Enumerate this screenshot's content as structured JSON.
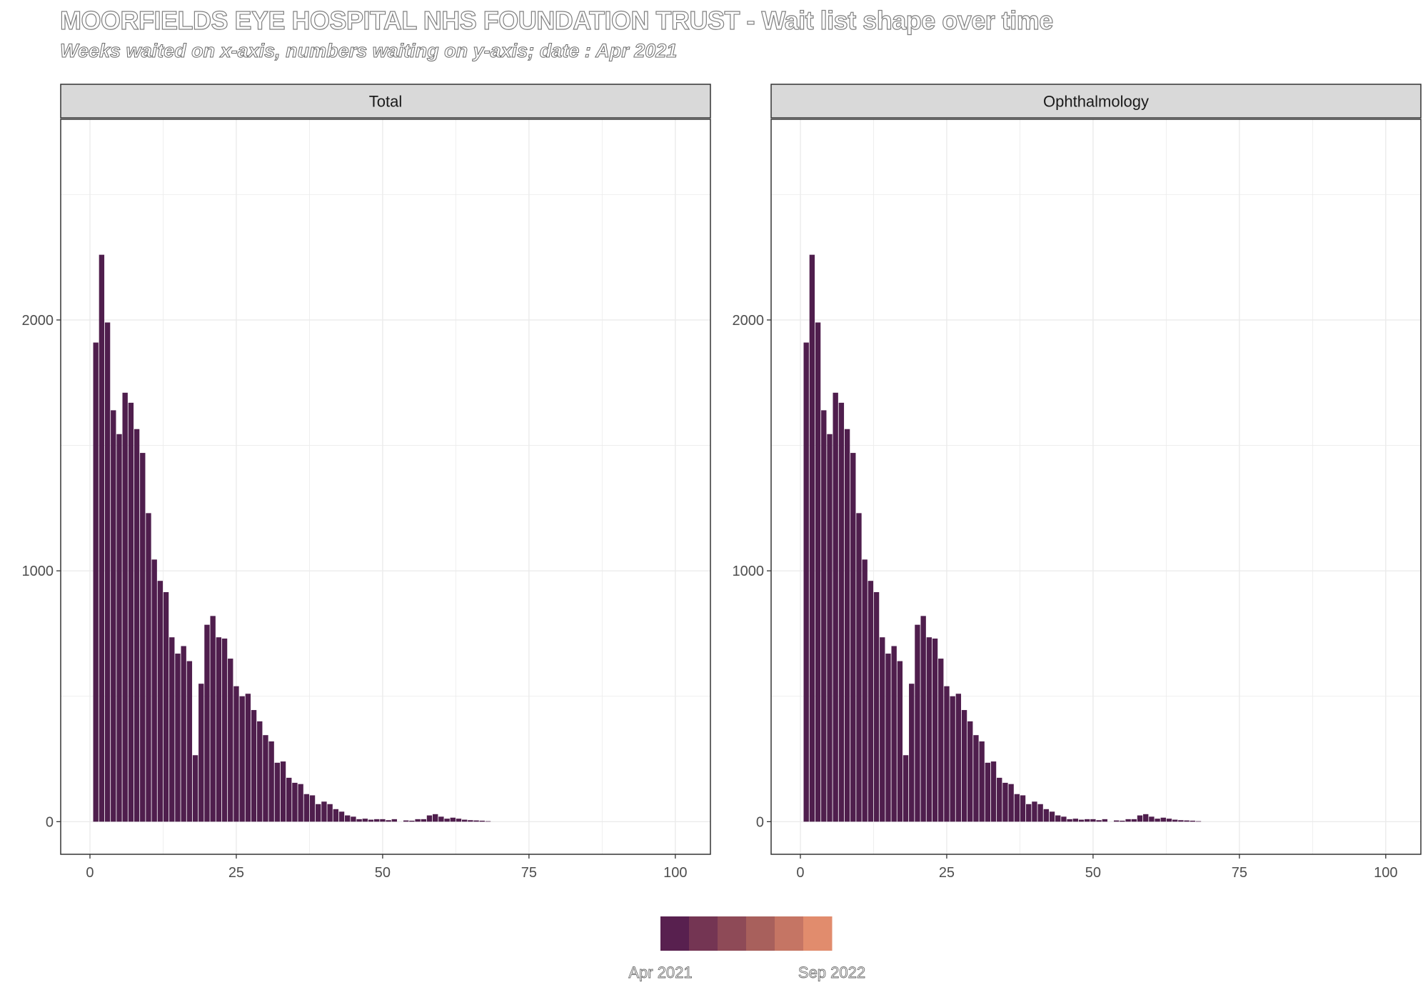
{
  "title": "MOORFIELDS EYE HOSPITAL NHS FOUNDATION TRUST - Wait list shape over time",
  "subtitle": "Weeks waited on x-axis, numbers waiting on y-axis; date : Apr 2021",
  "colors": {
    "bar": "#4f1e4d",
    "strip_bg": "#d9d9d9",
    "grid": "#ebebeb",
    "legend": [
      "#58204f",
      "#743553",
      "#8e4a57",
      "#a8605c",
      "#c57564",
      "#e18c6d"
    ]
  },
  "legend": {
    "start_label": "Apr 2021",
    "end_label": "Sep 2022"
  },
  "chart_data": [
    {
      "type": "bar",
      "panel": "Total",
      "x": [
        1,
        2,
        3,
        4,
        5,
        6,
        7,
        8,
        9,
        10,
        11,
        12,
        13,
        14,
        15,
        16,
        17,
        18,
        19,
        20,
        21,
        22,
        23,
        24,
        25,
        26,
        27,
        28,
        29,
        30,
        31,
        32,
        33,
        34,
        35,
        36,
        37,
        38,
        39,
        40,
        41,
        42,
        43,
        44,
        45,
        46,
        47,
        48,
        49,
        50,
        51,
        52,
        53,
        54,
        55,
        56,
        57,
        58,
        59,
        60,
        61,
        62,
        63,
        64,
        65,
        66,
        67,
        68
      ],
      "values": [
        1910,
        2260,
        1990,
        1640,
        1545,
        1710,
        1670,
        1565,
        1470,
        1230,
        1045,
        960,
        915,
        735,
        670,
        700,
        640,
        265,
        550,
        785,
        820,
        735,
        730,
        650,
        540,
        500,
        510,
        445,
        400,
        345,
        320,
        235,
        240,
        175,
        155,
        150,
        110,
        105,
        70,
        80,
        70,
        50,
        40,
        25,
        20,
        10,
        12,
        8,
        10,
        10,
        6,
        10,
        0,
        5,
        4,
        10,
        10,
        25,
        30,
        20,
        12,
        16,
        12,
        8,
        6,
        5,
        4,
        2
      ],
      "xlim": [
        -5,
        106
      ],
      "ylim": [
        -130,
        2800
      ],
      "xticks": [
        0,
        25,
        50,
        75,
        100
      ],
      "yticks": [
        0,
        1000,
        2000
      ],
      "grid": true
    },
    {
      "type": "bar",
      "panel": "Ophthalmology",
      "x": [
        1,
        2,
        3,
        4,
        5,
        6,
        7,
        8,
        9,
        10,
        11,
        12,
        13,
        14,
        15,
        16,
        17,
        18,
        19,
        20,
        21,
        22,
        23,
        24,
        25,
        26,
        27,
        28,
        29,
        30,
        31,
        32,
        33,
        34,
        35,
        36,
        37,
        38,
        39,
        40,
        41,
        42,
        43,
        44,
        45,
        46,
        47,
        48,
        49,
        50,
        51,
        52,
        53,
        54,
        55,
        56,
        57,
        58,
        59,
        60,
        61,
        62,
        63,
        64,
        65,
        66,
        67,
        68
      ],
      "values": [
        1910,
        2260,
        1990,
        1640,
        1545,
        1710,
        1670,
        1565,
        1470,
        1230,
        1045,
        960,
        915,
        735,
        670,
        700,
        640,
        265,
        550,
        785,
        820,
        735,
        730,
        650,
        540,
        500,
        510,
        445,
        400,
        345,
        320,
        235,
        240,
        175,
        155,
        150,
        110,
        105,
        70,
        80,
        70,
        50,
        40,
        25,
        20,
        10,
        12,
        8,
        10,
        10,
        6,
        10,
        0,
        5,
        4,
        10,
        10,
        25,
        30,
        20,
        12,
        16,
        12,
        8,
        6,
        5,
        4,
        2
      ],
      "xlim": [
        -5,
        106
      ],
      "ylim": [
        -130,
        2800
      ],
      "xticks": [
        0,
        25,
        50,
        75,
        100
      ],
      "yticks": [
        0,
        1000,
        2000
      ],
      "grid": true
    }
  ]
}
